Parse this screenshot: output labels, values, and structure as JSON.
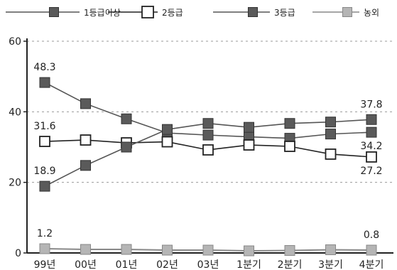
{
  "chart_data": {
    "type": "line",
    "categories": [
      "99년",
      "00년",
      "01년",
      "02년",
      "03년",
      "1분기",
      "2분기",
      "3분기",
      "4분기"
    ],
    "ylim": [
      0,
      60
    ],
    "yticks": [
      0,
      20,
      40,
      60
    ],
    "grid": true,
    "legend_position": "top",
    "series": [
      {
        "name": "1등급이상",
        "marker": "filled-square",
        "color": "#555555",
        "values": [
          48.3,
          42.3,
          38.0,
          34.0,
          33.4,
          32.9,
          32.5,
          33.7,
          34.2
        ]
      },
      {
        "name": "2등급",
        "marker": "open-square",
        "color": "#222222",
        "values": [
          31.6,
          32.0,
          31.2,
          31.5,
          29.2,
          30.6,
          30.2,
          28.0,
          27.2
        ]
      },
      {
        "name": "3등급",
        "marker": "filled-square",
        "color": "#555555",
        "values": [
          18.9,
          24.8,
          30.0,
          35.0,
          36.7,
          35.6,
          36.7,
          37.1,
          37.8
        ]
      },
      {
        "name": "농외",
        "marker": "filled-square-light",
        "color": "#888888",
        "values": [
          1.2,
          1.0,
          1.0,
          0.8,
          0.8,
          0.6,
          0.7,
          0.9,
          0.8
        ]
      }
    ],
    "annotations": [
      {
        "series": 0,
        "index": 0,
        "text": "48.3",
        "pos": "above"
      },
      {
        "series": 1,
        "index": 0,
        "text": "31.6",
        "pos": "above"
      },
      {
        "series": 2,
        "index": 0,
        "text": "18.9",
        "pos": "above"
      },
      {
        "series": 3,
        "index": 0,
        "text": "1.2",
        "pos": "above"
      },
      {
        "series": 2,
        "index": 8,
        "text": "37.8",
        "pos": "above"
      },
      {
        "series": 0,
        "index": 8,
        "text": "34.2",
        "pos": "below"
      },
      {
        "series": 1,
        "index": 8,
        "text": "27.2",
        "pos": "below"
      },
      {
        "series": 3,
        "index": 8,
        "text": "0.8",
        "pos": "above"
      }
    ]
  }
}
